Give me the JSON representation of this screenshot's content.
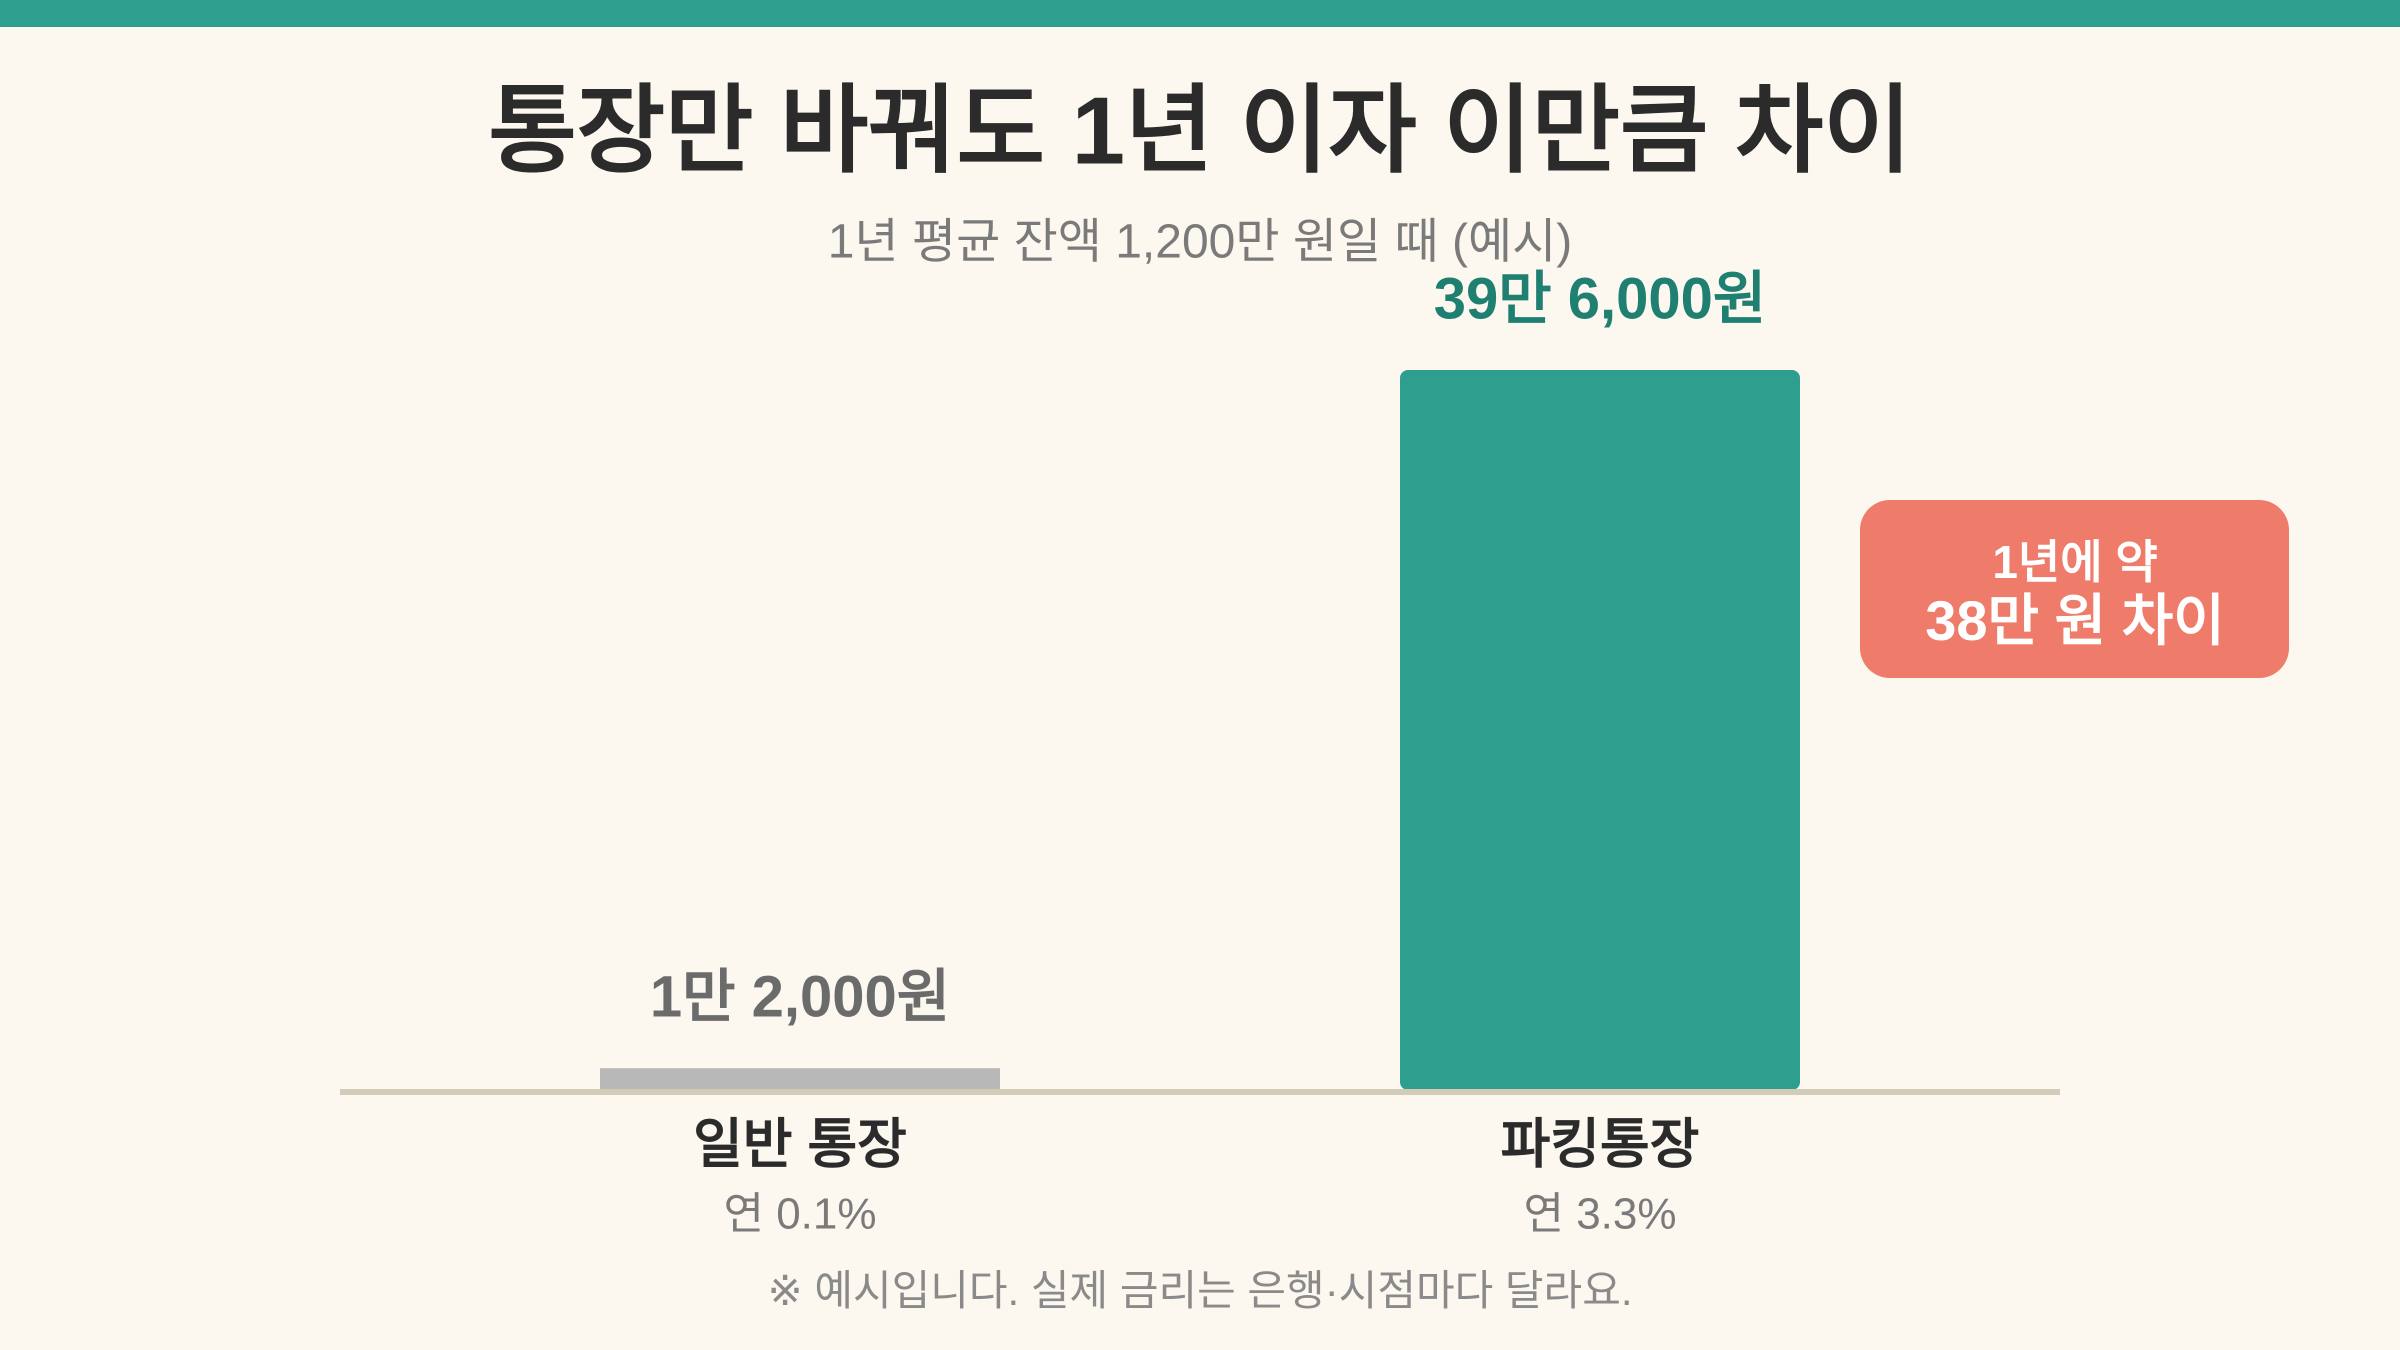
{
  "chart_data": {
    "type": "bar",
    "title": "통장만 바꿔도 1년 이자 이만큼 차이",
    "subtitle": "1년 평균 잔액 1,200만 원일 때 (예시)",
    "categories": [
      "일반 통장",
      "파킹통장"
    ],
    "rate_labels": [
      "연 0.1%",
      "연 3.3%"
    ],
    "values": [
      12000,
      396000
    ],
    "value_labels": [
      "1만 2,000원",
      "39만 6,000원"
    ],
    "colors": [
      "#b8b8b8",
      "#2e9e8e"
    ],
    "annotation": [
      "1년에 약",
      "38만 원 차이"
    ],
    "footnote": "※ 예시입니다. 실제 금리는 은행·시점마다 달라요."
  }
}
